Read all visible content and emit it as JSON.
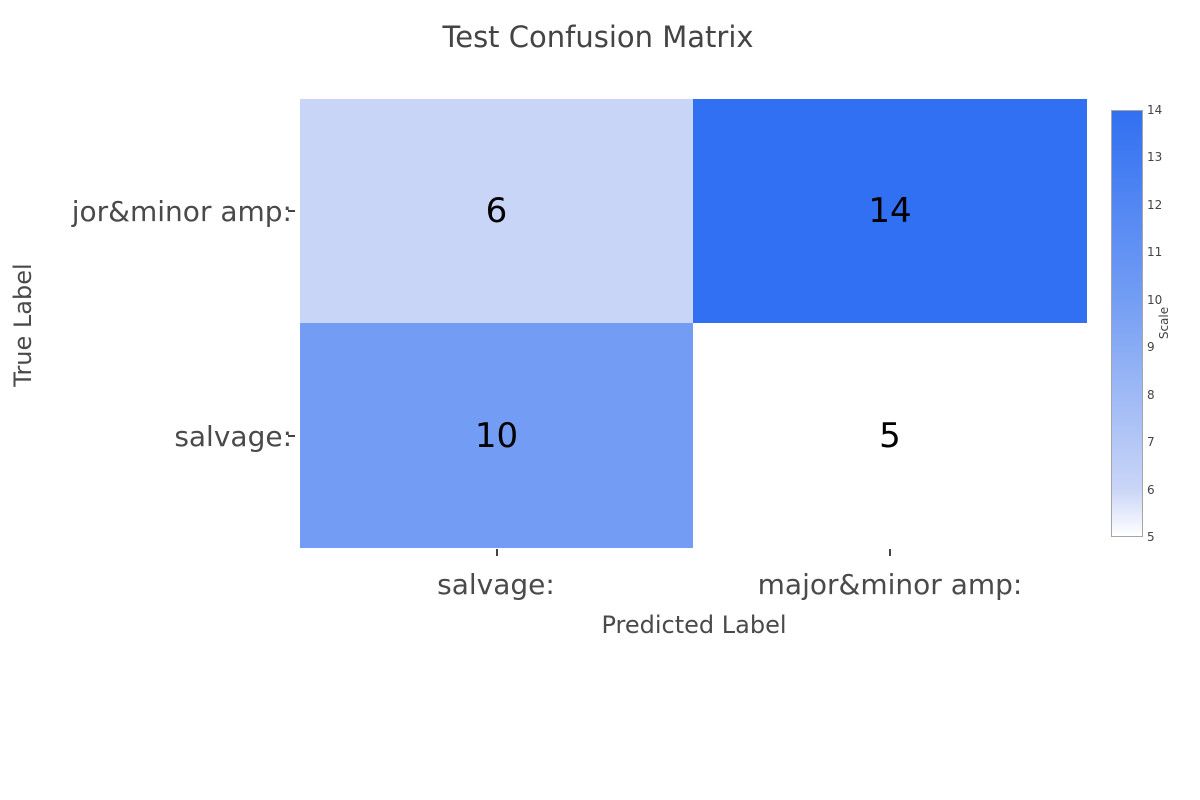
{
  "title": "Test Confusion Matrix",
  "chart_data": {
    "type": "heatmap",
    "title": "Test Confusion Matrix",
    "xlabel": "Predicted Label",
    "ylabel": "True Label",
    "x_categories": [
      "salvage:",
      "major&minor amp:"
    ],
    "y_categories": [
      "major&minor amp:",
      "salvage:"
    ],
    "y_tick_labels_display": [
      "jor&minor amp:",
      "salvage:"
    ],
    "values": [
      [
        6,
        14
      ],
      [
        10,
        5
      ]
    ],
    "cell_colors": [
      [
        "#c9d5f7",
        "#3170f2"
      ],
      [
        "#739df4",
        "#ffffff"
      ]
    ],
    "colorbar": {
      "title": "Scale",
      "min": 5,
      "max": 14,
      "ticks": [
        5,
        6,
        7,
        8,
        9,
        10,
        11,
        12,
        13,
        14
      ],
      "gradient_stops": [
        {
          "value": 5,
          "color": "#ffffff"
        },
        {
          "value": 6,
          "color": "#c9d5f7"
        },
        {
          "value": 10,
          "color": "#739df4"
        },
        {
          "value": 14,
          "color": "#3170f2"
        }
      ],
      "border_color": "#a6a6a6"
    },
    "legend": false,
    "grid": false
  },
  "colors": {
    "text": "#444444",
    "axis_text": "#4a4a4a",
    "annotation_text": "#000000",
    "max_blue": "#3170f2",
    "min_white": "#ffffff"
  }
}
